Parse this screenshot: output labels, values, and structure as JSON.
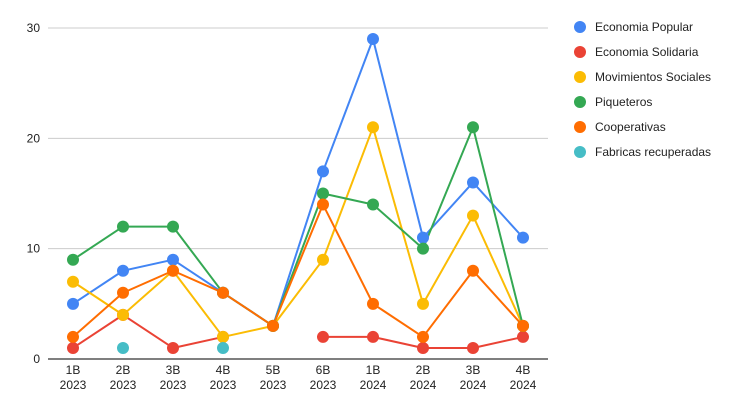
{
  "chart_data": {
    "type": "line",
    "title": "",
    "xlabel": "",
    "ylabel": "",
    "ylim": [
      0,
      30
    ],
    "yticks": [
      0,
      10,
      20,
      30
    ],
    "grid": true,
    "legend_position": "right",
    "categories": [
      [
        "1B",
        "2023"
      ],
      [
        "2B",
        "2023"
      ],
      [
        "3B",
        "2023"
      ],
      [
        "4B",
        "2023"
      ],
      [
        "5B",
        "2023"
      ],
      [
        "6B",
        "2023"
      ],
      [
        "1B",
        "2024"
      ],
      [
        "2B",
        "2024"
      ],
      [
        "3B",
        "2024"
      ],
      [
        "4B",
        "2024"
      ]
    ],
    "series": [
      {
        "name": "Economia Popular",
        "color": "#4285f4",
        "values": [
          5,
          8,
          9,
          6,
          3,
          17,
          29,
          11,
          16,
          11
        ]
      },
      {
        "name": "Economia Solidaria",
        "color": "#ea4335",
        "values": [
          1,
          4,
          1,
          2,
          null,
          2,
          2,
          1,
          1,
          2
        ]
      },
      {
        "name": "Movimientos Sociales",
        "color": "#fbbc04",
        "values": [
          7,
          4,
          8,
          2,
          3,
          9,
          21,
          5,
          13,
          3
        ]
      },
      {
        "name": "Piqueteros",
        "color": "#34a853",
        "values": [
          9,
          12,
          12,
          6,
          3,
          15,
          14,
          10,
          21,
          3
        ]
      },
      {
        "name": "Cooperativas",
        "color": "#ff6d01",
        "values": [
          2,
          6,
          8,
          6,
          3,
          14,
          5,
          2,
          8,
          3
        ]
      },
      {
        "name": "Fabricas recuperadas",
        "color": "#46bdc6",
        "values": [
          null,
          1,
          null,
          1,
          null,
          null,
          null,
          null,
          null,
          null
        ]
      }
    ]
  }
}
